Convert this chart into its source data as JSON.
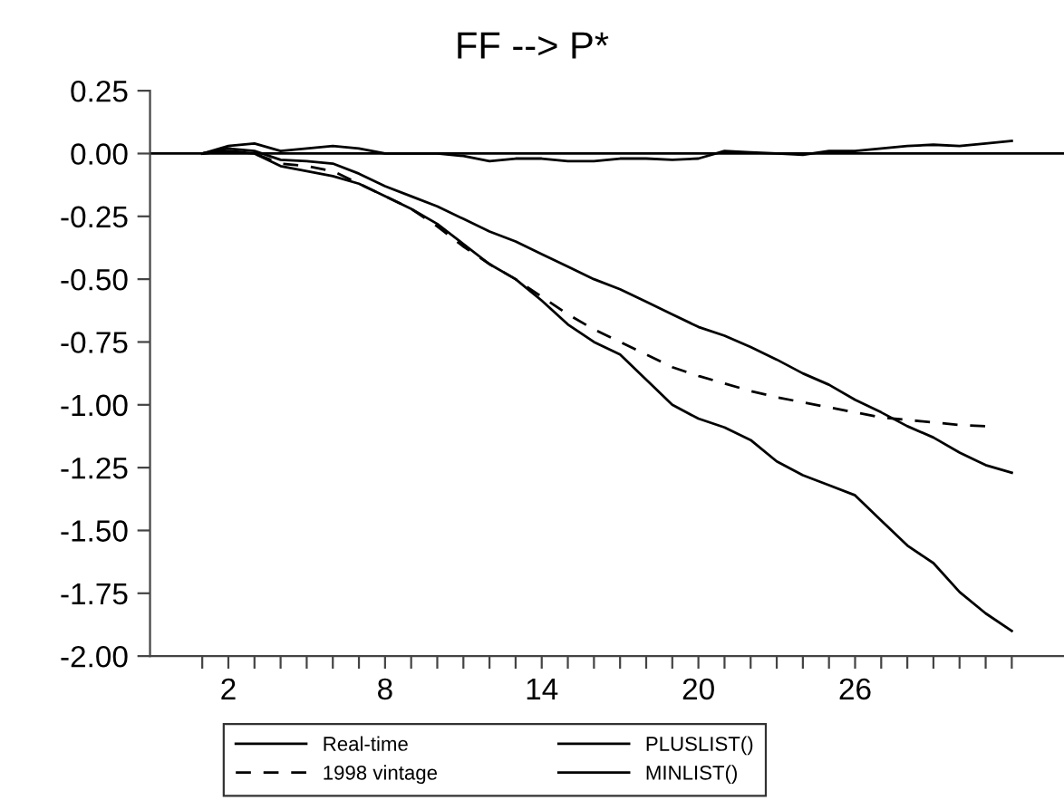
{
  "chart_data": {
    "type": "line",
    "title": "FF --> P*",
    "x": [
      1,
      2,
      3,
      4,
      5,
      6,
      7,
      8,
      9,
      10,
      11,
      12,
      13,
      14,
      15,
      16,
      17,
      18,
      19,
      20,
      21,
      22,
      23,
      24,
      25,
      26,
      27,
      28,
      29,
      30,
      31,
      32
    ],
    "series": [
      {
        "name": "Real-time",
        "color": "#000000",
        "line_style": "solid",
        "values": [
          0,
          0.02,
          0.01,
          -0.025,
          -0.03,
          -0.04,
          -0.08,
          -0.13,
          -0.17,
          -0.21,
          -0.26,
          -0.31,
          -0.35,
          -0.4,
          -0.45,
          -0.5,
          -0.54,
          -0.59,
          -0.64,
          -0.69,
          -0.725,
          -0.77,
          -0.82,
          -0.875,
          -0.92,
          -0.98,
          -1.03,
          -1.085,
          -1.13,
          -1.19,
          -1.24,
          -1.27
        ]
      },
      {
        "name": "1998 vintage",
        "color": "#000000",
        "line_style": "dashed",
        "x": [
          1,
          2,
          3,
          4,
          5,
          6,
          7,
          8,
          9,
          10,
          11,
          12,
          13,
          14,
          15,
          16,
          17,
          18,
          19,
          20,
          21,
          22,
          23,
          24,
          25,
          26,
          27,
          28,
          29,
          30,
          31
        ],
        "values": [
          0,
          0.01,
          0.0,
          -0.04,
          -0.05,
          -0.07,
          -0.12,
          -0.17,
          -0.22,
          -0.29,
          -0.37,
          -0.44,
          -0.5,
          -0.57,
          -0.64,
          -0.7,
          -0.75,
          -0.8,
          -0.85,
          -0.885,
          -0.915,
          -0.945,
          -0.97,
          -0.99,
          -1.01,
          -1.03,
          -1.05,
          -1.06,
          -1.07,
          -1.08,
          -1.085
        ]
      },
      {
        "name": "PLUSLIST()",
        "color": "#000000",
        "line_style": "solid",
        "values": [
          0,
          0.03,
          0.04,
          0.01,
          0.02,
          0.03,
          0.02,
          0.0,
          0,
          0,
          -0.01,
          -0.03,
          -0.02,
          -0.02,
          -0.03,
          -0.03,
          -0.02,
          -0.02,
          -0.025,
          -0.02,
          0.01,
          0.005,
          0,
          -0.005,
          0.01,
          0.01,
          0.02,
          0.03,
          0.035,
          0.03,
          0.04,
          0.05
        ]
      },
      {
        "name": "MINLIST()",
        "color": "#000000",
        "line_style": "solid",
        "values": [
          0,
          0.01,
          0.0,
          -0.05,
          -0.07,
          -0.09,
          -0.12,
          -0.17,
          -0.22,
          -0.28,
          -0.36,
          -0.44,
          -0.5,
          -0.585,
          -0.68,
          -0.75,
          -0.8,
          -0.9,
          -1.0,
          -1.055,
          -1.09,
          -1.14,
          -1.225,
          -1.28,
          -1.32,
          -1.36,
          -1.46,
          -1.56,
          -1.63,
          -1.745,
          -1.83,
          -1.9
        ]
      }
    ],
    "xlim": [
      -1,
      34
    ],
    "ylim": [
      -2.0,
      0.25
    ],
    "xticks": [
      {
        "value": 1,
        "label": null
      },
      2,
      {
        "value": 3,
        "label": null
      },
      {
        "value": 4,
        "label": null
      },
      {
        "value": 5,
        "label": null
      },
      {
        "value": 6,
        "label": null
      },
      {
        "value": 7,
        "label": null
      },
      8,
      {
        "value": 9,
        "label": null
      },
      {
        "value": 10,
        "label": null
      },
      {
        "value": 11,
        "label": null
      },
      {
        "value": 12,
        "label": null
      },
      {
        "value": 13,
        "label": null
      },
      14,
      {
        "value": 15,
        "label": null
      },
      {
        "value": 16,
        "label": null
      },
      {
        "value": 17,
        "label": null
      },
      {
        "value": 18,
        "label": null
      },
      {
        "value": 19,
        "label": null
      },
      20,
      {
        "value": 21,
        "label": null
      },
      {
        "value": 22,
        "label": null
      },
      {
        "value": 23,
        "label": null
      },
      {
        "value": 24,
        "label": null
      },
      {
        "value": 25,
        "label": null
      },
      26,
      {
        "value": 27,
        "label": null
      },
      {
        "value": 28,
        "label": null
      },
      {
        "value": 29,
        "label": null
      },
      {
        "value": 30,
        "label": null
      },
      {
        "value": 31,
        "label": null
      },
      {
        "value": 32,
        "label": null
      }
    ],
    "yticks": [
      {
        "value": 0.25,
        "label": "0.25"
      },
      {
        "value": 0.0,
        "label": "0.00"
      },
      {
        "value": -0.25,
        "label": "-0.25"
      },
      {
        "value": -0.5,
        "label": "-0.50"
      },
      {
        "value": -0.75,
        "label": "-0.75"
      },
      {
        "value": -1.0,
        "label": "-1.00"
      },
      {
        "value": -1.25,
        "label": "-1.25"
      },
      {
        "value": -1.5,
        "label": "-1.50"
      },
      {
        "value": -1.75,
        "label": "-1.75"
      },
      {
        "value": -2.0,
        "label": "-2.00"
      }
    ],
    "ref_lines": [
      {
        "axis": "y",
        "value": 0,
        "color": "#000000"
      }
    ],
    "grid": false,
    "legend": "bottom",
    "marker": "none"
  }
}
